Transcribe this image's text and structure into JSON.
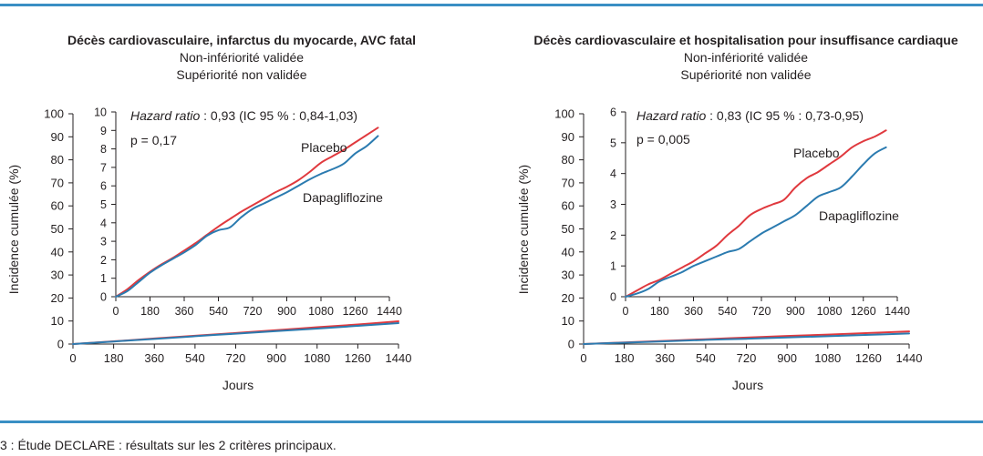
{
  "chart_data": [
    {
      "type": "line",
      "title": "Décès cardiovasculaire, infarctus du myocarde, AVC fatal",
      "subtitle_1": "Non-infériorité validée",
      "subtitle_2": "Supériorité non validée",
      "xlabel": "Jours",
      "ylabel": "Incidence cumulée (%)",
      "xlim": [
        0,
        1440
      ],
      "ylim": [
        0,
        100
      ],
      "x_ticks": [
        "0",
        "180",
        "360",
        "540",
        "720",
        "900",
        "1080",
        "1260",
        "1440"
      ],
      "y_ticks": [
        "0",
        "10",
        "20",
        "30",
        "40",
        "50",
        "60",
        "70",
        "80",
        "90",
        "100"
      ],
      "grid": false,
      "hazard_ratio_label": "Hazard ratio",
      "hazard_ratio_value": " : 0,93 (IC 95 % : 0,84-1,03)",
      "p_value": "p = 0,17",
      "series": [
        {
          "name": "Placebo",
          "color": "#e0393e",
          "x": [
            0,
            180,
            360,
            540,
            720,
            900,
            1080,
            1260,
            1440
          ],
          "values": [
            0,
            1.2,
            2.4,
            3.6,
            4.8,
            6.0,
            7.3,
            8.5,
            9.9
          ]
        },
        {
          "name": "Dapagliflozine",
          "color": "#2b7bb0",
          "x": [
            0,
            180,
            360,
            540,
            720,
            900,
            1080,
            1260,
            1440
          ],
          "values": [
            0,
            1.1,
            2.2,
            3.4,
            4.5,
            5.6,
            6.7,
            7.9,
            9.1
          ]
        }
      ],
      "inset": {
        "xlim": [
          0,
          1440
        ],
        "ylim": [
          0,
          10
        ],
        "x_ticks": [
          "0",
          "180",
          "360",
          "540",
          "720",
          "900",
          "1080",
          "1260",
          "1440"
        ],
        "y_ticks": [
          "0",
          "1",
          "2",
          "3",
          "4",
          "5",
          "6",
          "7",
          "8",
          "9",
          "10"
        ],
        "series": [
          {
            "name": "Placebo",
            "color": "#e0393e",
            "x": [
              0,
              60,
              120,
              180,
              240,
              300,
              360,
              420,
              480,
              540,
              600,
              660,
              720,
              780,
              840,
              900,
              960,
              1020,
              1080,
              1140,
              1200,
              1260,
              1320,
              1380
            ],
            "values": [
              0,
              0.4,
              0.9,
              1.35,
              1.75,
              2.1,
              2.5,
              2.9,
              3.35,
              3.8,
              4.2,
              4.6,
              4.95,
              5.3,
              5.65,
              5.95,
              6.3,
              6.75,
              7.25,
              7.6,
              7.95,
              8.35,
              8.75,
              9.15
            ]
          },
          {
            "name": "Dapagliflozine",
            "color": "#2b7bb0",
            "x": [
              0,
              60,
              120,
              180,
              240,
              300,
              360,
              420,
              480,
              540,
              600,
              660,
              720,
              780,
              840,
              900,
              960,
              1020,
              1080,
              1140,
              1200,
              1260,
              1320,
              1380
            ],
            "values": [
              0,
              0.3,
              0.8,
              1.3,
              1.7,
              2.05,
              2.4,
              2.8,
              3.3,
              3.6,
              3.75,
              4.3,
              4.75,
              5.05,
              5.35,
              5.65,
              6.0,
              6.35,
              6.65,
              6.9,
              7.2,
              7.75,
              8.15,
              8.7
            ]
          }
        ]
      }
    },
    {
      "type": "line",
      "title": "Décès cardiovasculaire et hospitalisation pour insuffisance cardiaque",
      "subtitle_1": "Non-infériorité validée",
      "subtitle_2": "Supériorité non validée",
      "xlabel": "Jours",
      "ylabel": "Incidence cumulée (%)",
      "xlim": [
        0,
        1440
      ],
      "ylim": [
        0,
        100
      ],
      "x_ticks": [
        "0",
        "180",
        "360",
        "540",
        "720",
        "900",
        "1080",
        "1260",
        "1440"
      ],
      "y_ticks": [
        "0",
        "10",
        "20",
        "30",
        "40",
        "50",
        "60",
        "70",
        "80",
        "90",
        "100"
      ],
      "grid": false,
      "hazard_ratio_label": "Hazard ratio",
      "hazard_ratio_value": " : 0,83 (IC 95 % : 0,73-0,95)",
      "p_value": "p = 0,005",
      "series": [
        {
          "name": "Placebo",
          "color": "#e0393e",
          "x": [
            0,
            180,
            360,
            540,
            720,
            900,
            1080,
            1260,
            1440
          ],
          "values": [
            0,
            0.7,
            1.4,
            2.1,
            2.8,
            3.5,
            4.1,
            4.8,
            5.5
          ]
        },
        {
          "name": "Dapagliflozine",
          "color": "#2b7bb0",
          "x": [
            0,
            180,
            360,
            540,
            720,
            900,
            1080,
            1260,
            1440
          ],
          "values": [
            0,
            0.6,
            1.2,
            1.8,
            2.3,
            2.9,
            3.4,
            4.0,
            4.6
          ]
        }
      ],
      "inset": {
        "xlim": [
          0,
          1440
        ],
        "ylim": [
          0,
          6
        ],
        "x_ticks": [
          "0",
          "180",
          "360",
          "540",
          "720",
          "900",
          "1080",
          "1260",
          "1440"
        ],
        "y_ticks": [
          "0",
          "1",
          "2",
          "3",
          "4",
          "5",
          "6"
        ],
        "series": [
          {
            "name": "Placebo",
            "color": "#e0393e",
            "x": [
              0,
              60,
              120,
              180,
              240,
              300,
              360,
              420,
              480,
              540,
              600,
              660,
              720,
              780,
              840,
              900,
              960,
              1020,
              1080,
              1140,
              1200,
              1260,
              1320,
              1380
            ],
            "values": [
              0,
              0.2,
              0.4,
              0.55,
              0.75,
              0.95,
              1.15,
              1.4,
              1.65,
              2.0,
              2.3,
              2.65,
              2.85,
              3.0,
              3.15,
              3.55,
              3.85,
              4.05,
              4.3,
              4.55,
              4.85,
              5.05,
              5.2,
              5.4
            ]
          },
          {
            "name": "Dapagliflozine",
            "color": "#2b7bb0",
            "x": [
              0,
              60,
              120,
              180,
              240,
              300,
              360,
              420,
              480,
              540,
              600,
              660,
              720,
              780,
              840,
              900,
              960,
              1020,
              1080,
              1140,
              1200,
              1260,
              1320,
              1380
            ],
            "values": [
              0,
              0.1,
              0.25,
              0.5,
              0.65,
              0.8,
              1.0,
              1.15,
              1.3,
              1.45,
              1.55,
              1.8,
              2.05,
              2.25,
              2.45,
              2.65,
              2.95,
              3.25,
              3.4,
              3.55,
              3.9,
              4.3,
              4.65,
              4.85
            ]
          }
        ]
      }
    }
  ],
  "caption": "3 : Étude DECLARE : résultats sur les 2 critères principaux."
}
